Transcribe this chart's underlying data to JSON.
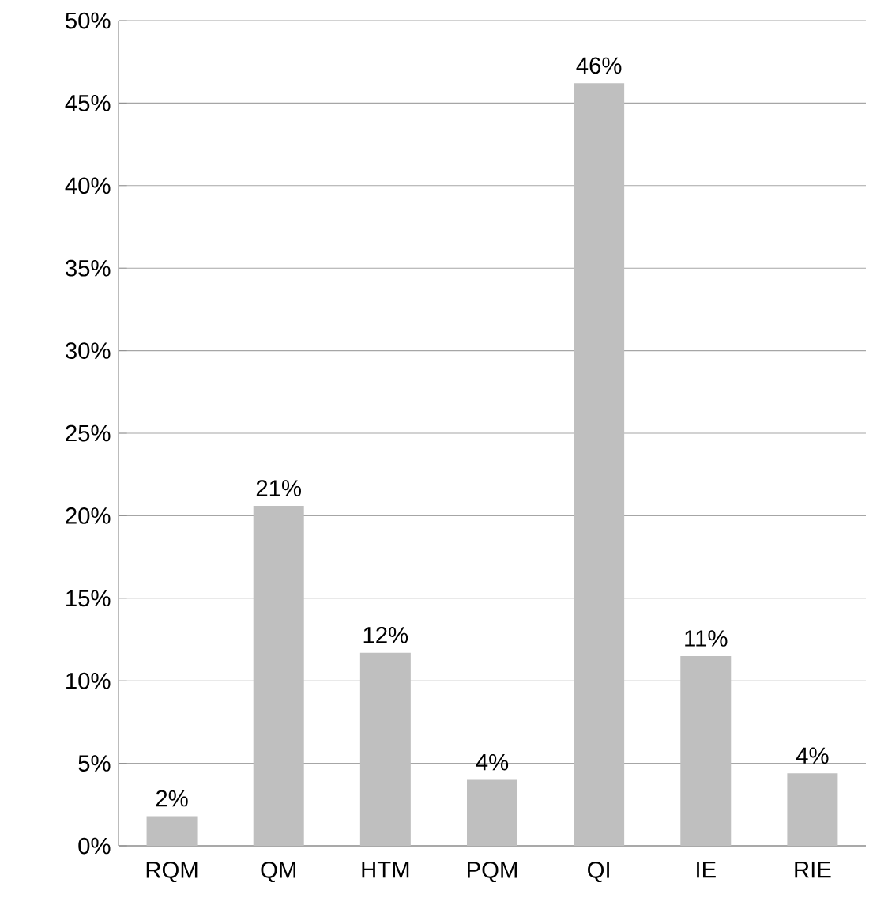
{
  "chart_data": {
    "type": "bar",
    "categories": [
      "RQM",
      "QM",
      "HTM",
      "PQM",
      "QI",
      "IE",
      "RIE"
    ],
    "values": [
      1.8,
      20.6,
      11.7,
      4.0,
      46.2,
      11.5,
      4.4
    ],
    "value_labels": [
      "2%",
      "21%",
      "12%",
      "4%",
      "46%",
      "11%",
      "4%"
    ],
    "color": "#bfbfbf",
    "ylim": [
      0,
      50
    ],
    "yticks": [
      {
        "value": 0,
        "label": "0%"
      },
      {
        "value": 5,
        "label": "5%"
      },
      {
        "value": 10,
        "label": "10%"
      },
      {
        "value": 15,
        "label": "15%"
      },
      {
        "value": 20,
        "label": "20%"
      },
      {
        "value": 25,
        "label": "25%"
      },
      {
        "value": 30,
        "label": "30%"
      },
      {
        "value": 35,
        "label": "35%"
      },
      {
        "value": 40,
        "label": "40%"
      },
      {
        "value": 45,
        "label": "45%"
      },
      {
        "value": 50,
        "label": "50%"
      }
    ],
    "grid": "y"
  }
}
